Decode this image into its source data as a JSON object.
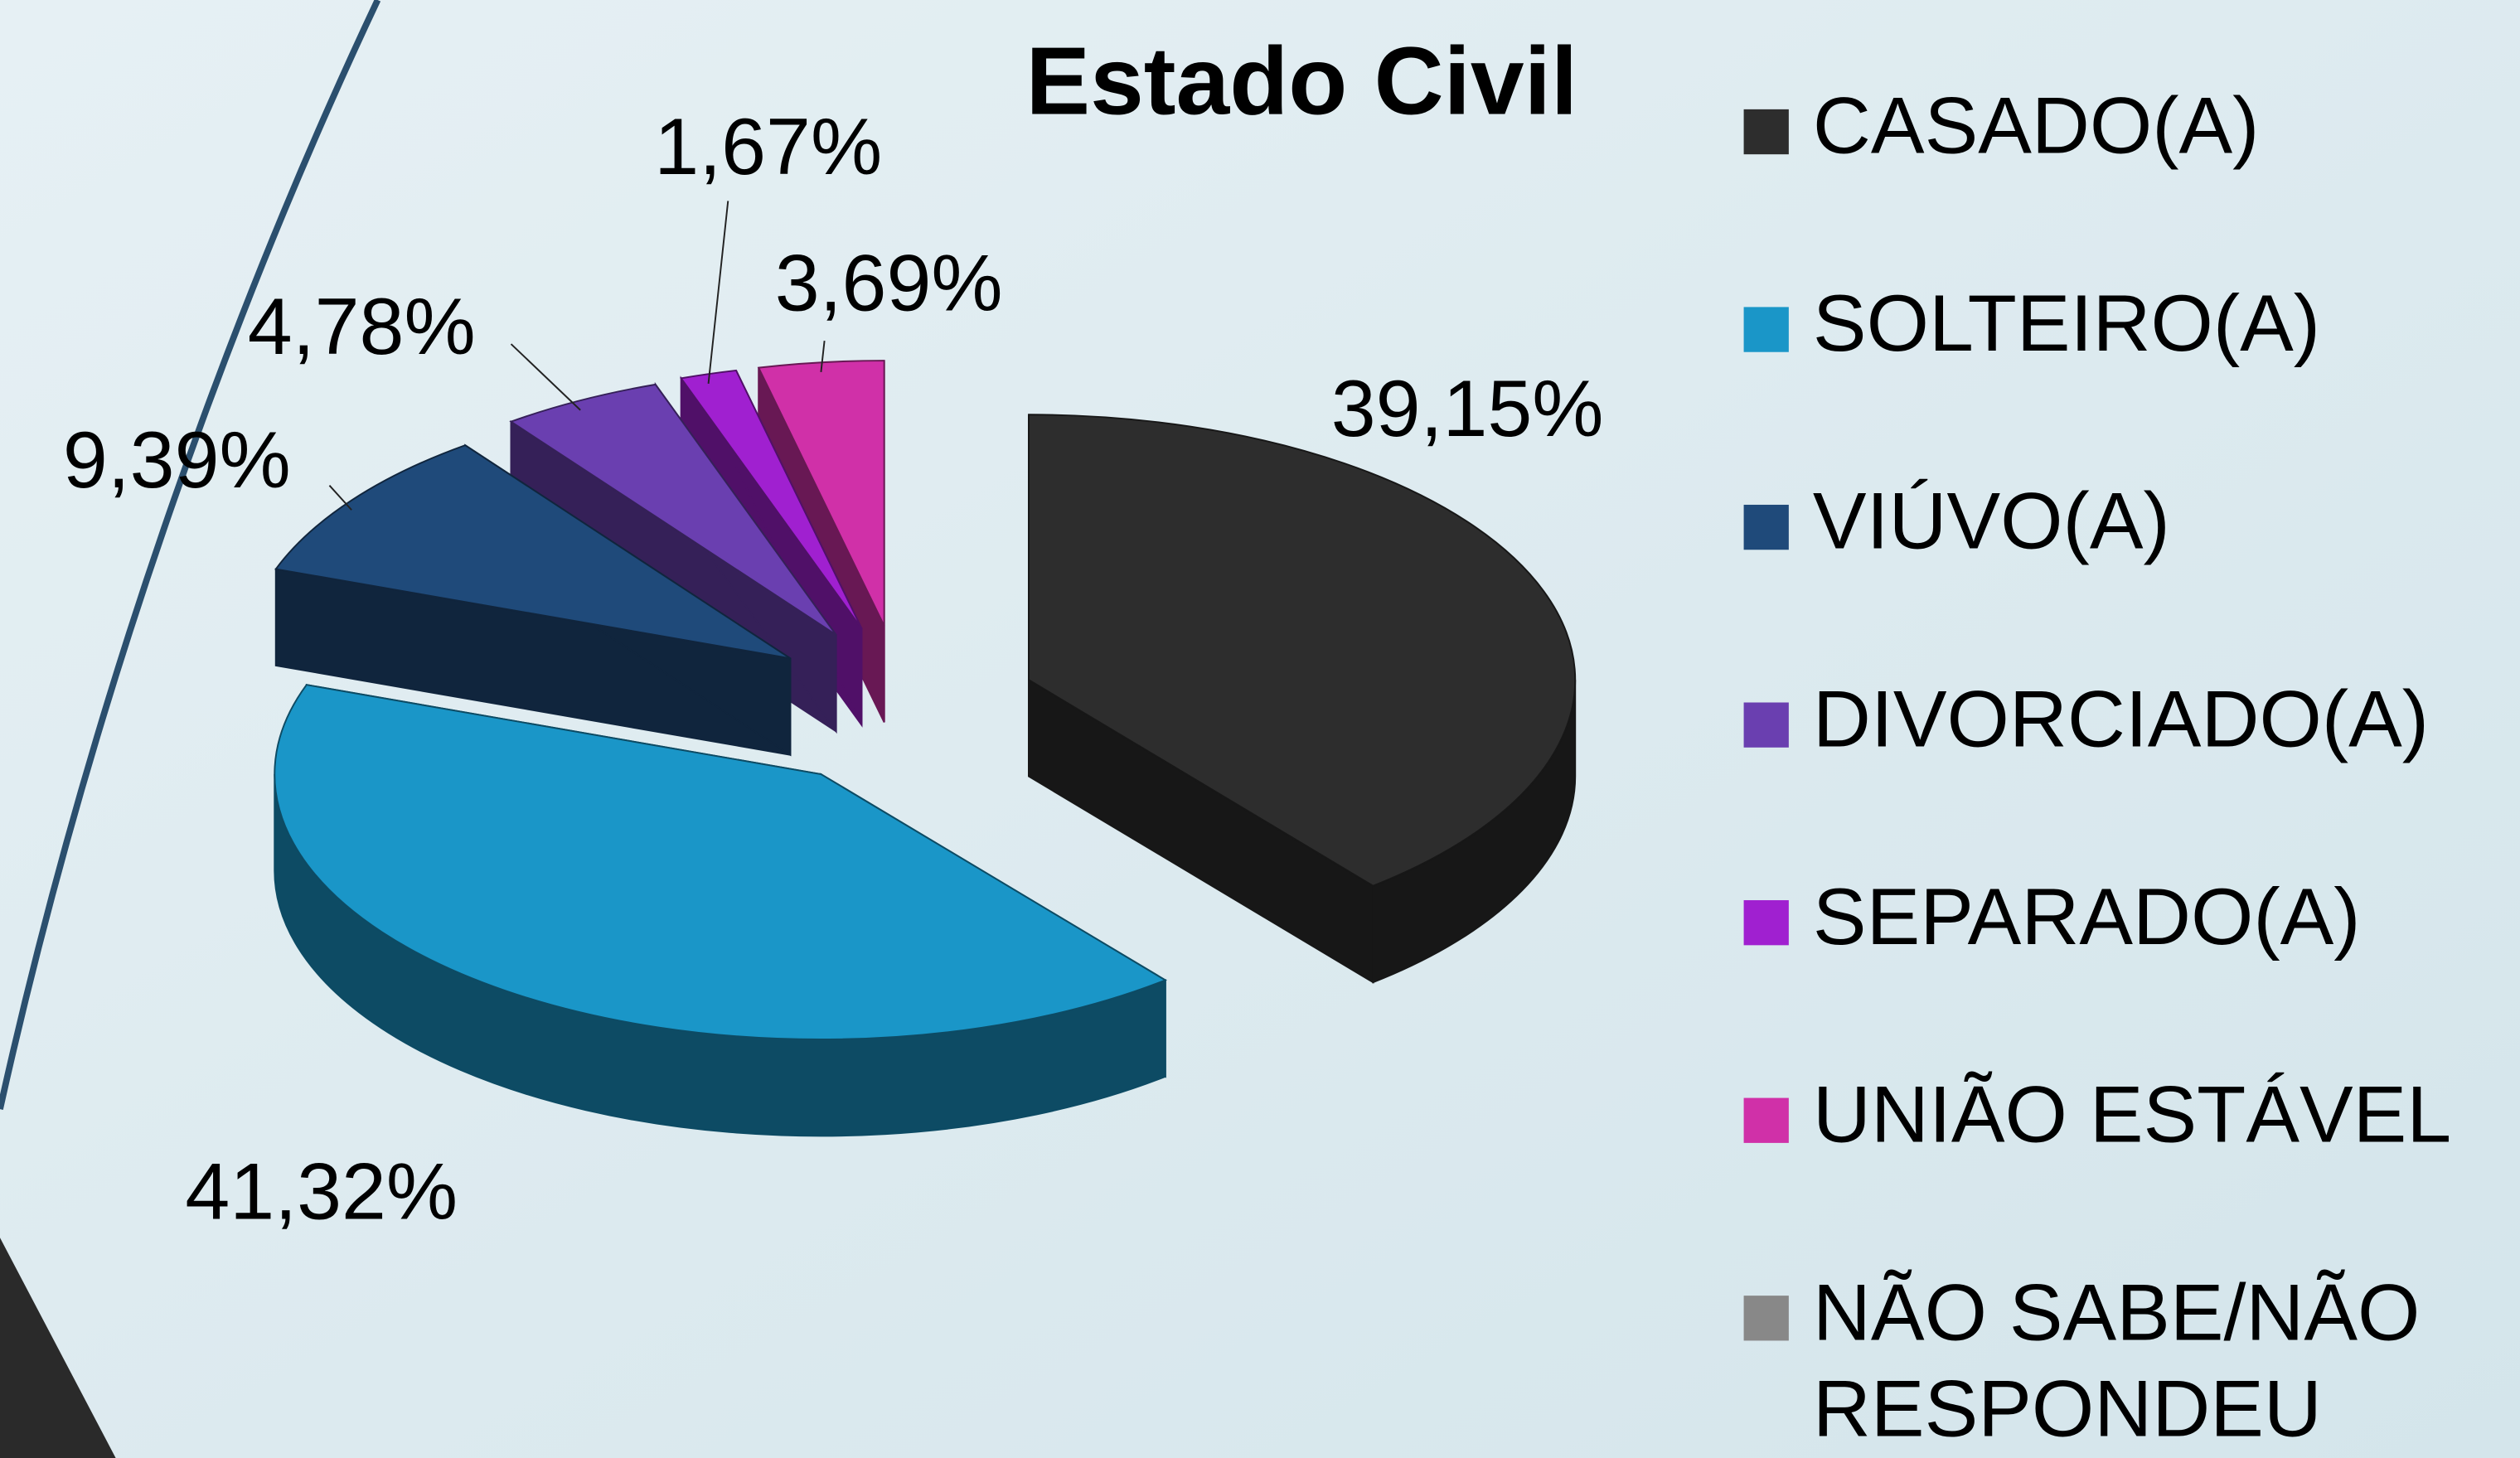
{
  "chart_data": {
    "type": "pie",
    "title": "Estado Civil",
    "categories": [
      "CASADO(A)",
      "SOLTEIRO(A)",
      "VIÚVO(A)",
      "DIVORCIADO(A)",
      "SEPARADO(A)",
      "UNIÃO ESTÁVEL",
      "NÃO SABE/NÃO RESPONDEU"
    ],
    "values": [
      39.15,
      41.32,
      9.39,
      4.78,
      1.67,
      3.69,
      0
    ],
    "value_labels": [
      "39,15%",
      "41,32%",
      "9,39%",
      "4,78%",
      "1,67%",
      "3,69%",
      null
    ],
    "colors": [
      "#2d2d2d",
      "#1a96c8",
      "#1f4a7a",
      "#6a3fb0",
      "#a020d0",
      "#d030a8",
      "#888888"
    ],
    "legend": "right"
  }
}
